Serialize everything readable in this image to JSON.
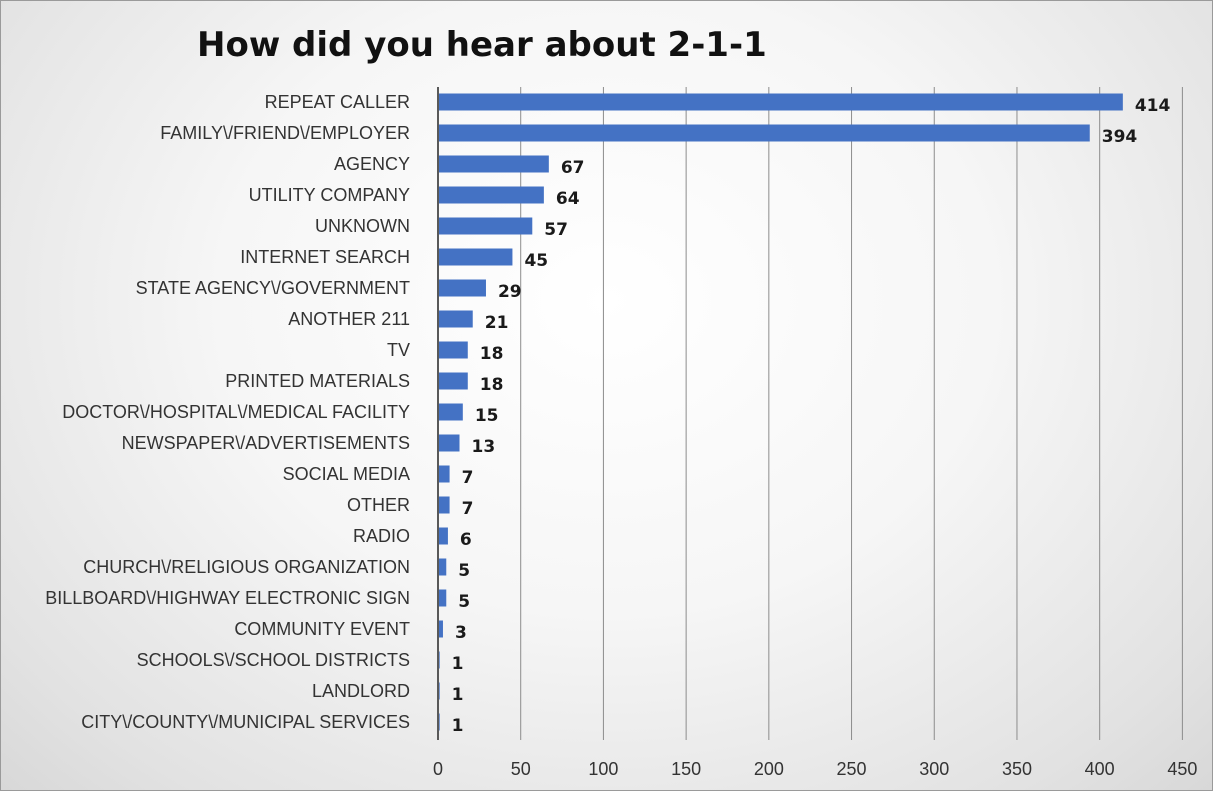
{
  "chart_data": {
    "type": "bar",
    "orientation": "horizontal",
    "title": "How did you hear about 2-1-1",
    "xlabel": "",
    "ylabel": "",
    "categories": [
      "REPEAT CALLER",
      "FAMILY\\/FRIEND\\/EMPLOYER",
      "AGENCY",
      "UTILITY COMPANY",
      "UNKNOWN",
      "INTERNET SEARCH",
      "STATE AGENCY\\/GOVERNMENT",
      "ANOTHER 211",
      "TV",
      "PRINTED MATERIALS",
      "DOCTOR\\/HOSPITAL\\/MEDICAL FACILITY",
      "NEWSPAPER\\/ADVERTISEMENTS",
      "SOCIAL MEDIA",
      "OTHER",
      "RADIO",
      "CHURCH\\/RELIGIOUS ORGANIZATION",
      "BILLBOARD\\/HIGHWAY ELECTRONIC SIGN",
      "COMMUNITY EVENT",
      "SCHOOLS\\/SCHOOL DISTRICTS",
      "LANDLORD",
      "CITY\\/COUNTY\\/MUNICIPAL SERVICES"
    ],
    "values": [
      414,
      394,
      67,
      64,
      57,
      45,
      29,
      21,
      18,
      18,
      15,
      13,
      7,
      7,
      6,
      5,
      5,
      3,
      1,
      1,
      1
    ],
    "xlim": [
      0,
      450
    ],
    "xticks": [
      0,
      50,
      100,
      150,
      200,
      250,
      300,
      350,
      400,
      450
    ],
    "grid": "vertical",
    "data_labels": true,
    "legend": "none",
    "colors": {
      "bar": "#4472c4",
      "grid": "#8c8c8c",
      "axis": "#595959"
    }
  }
}
